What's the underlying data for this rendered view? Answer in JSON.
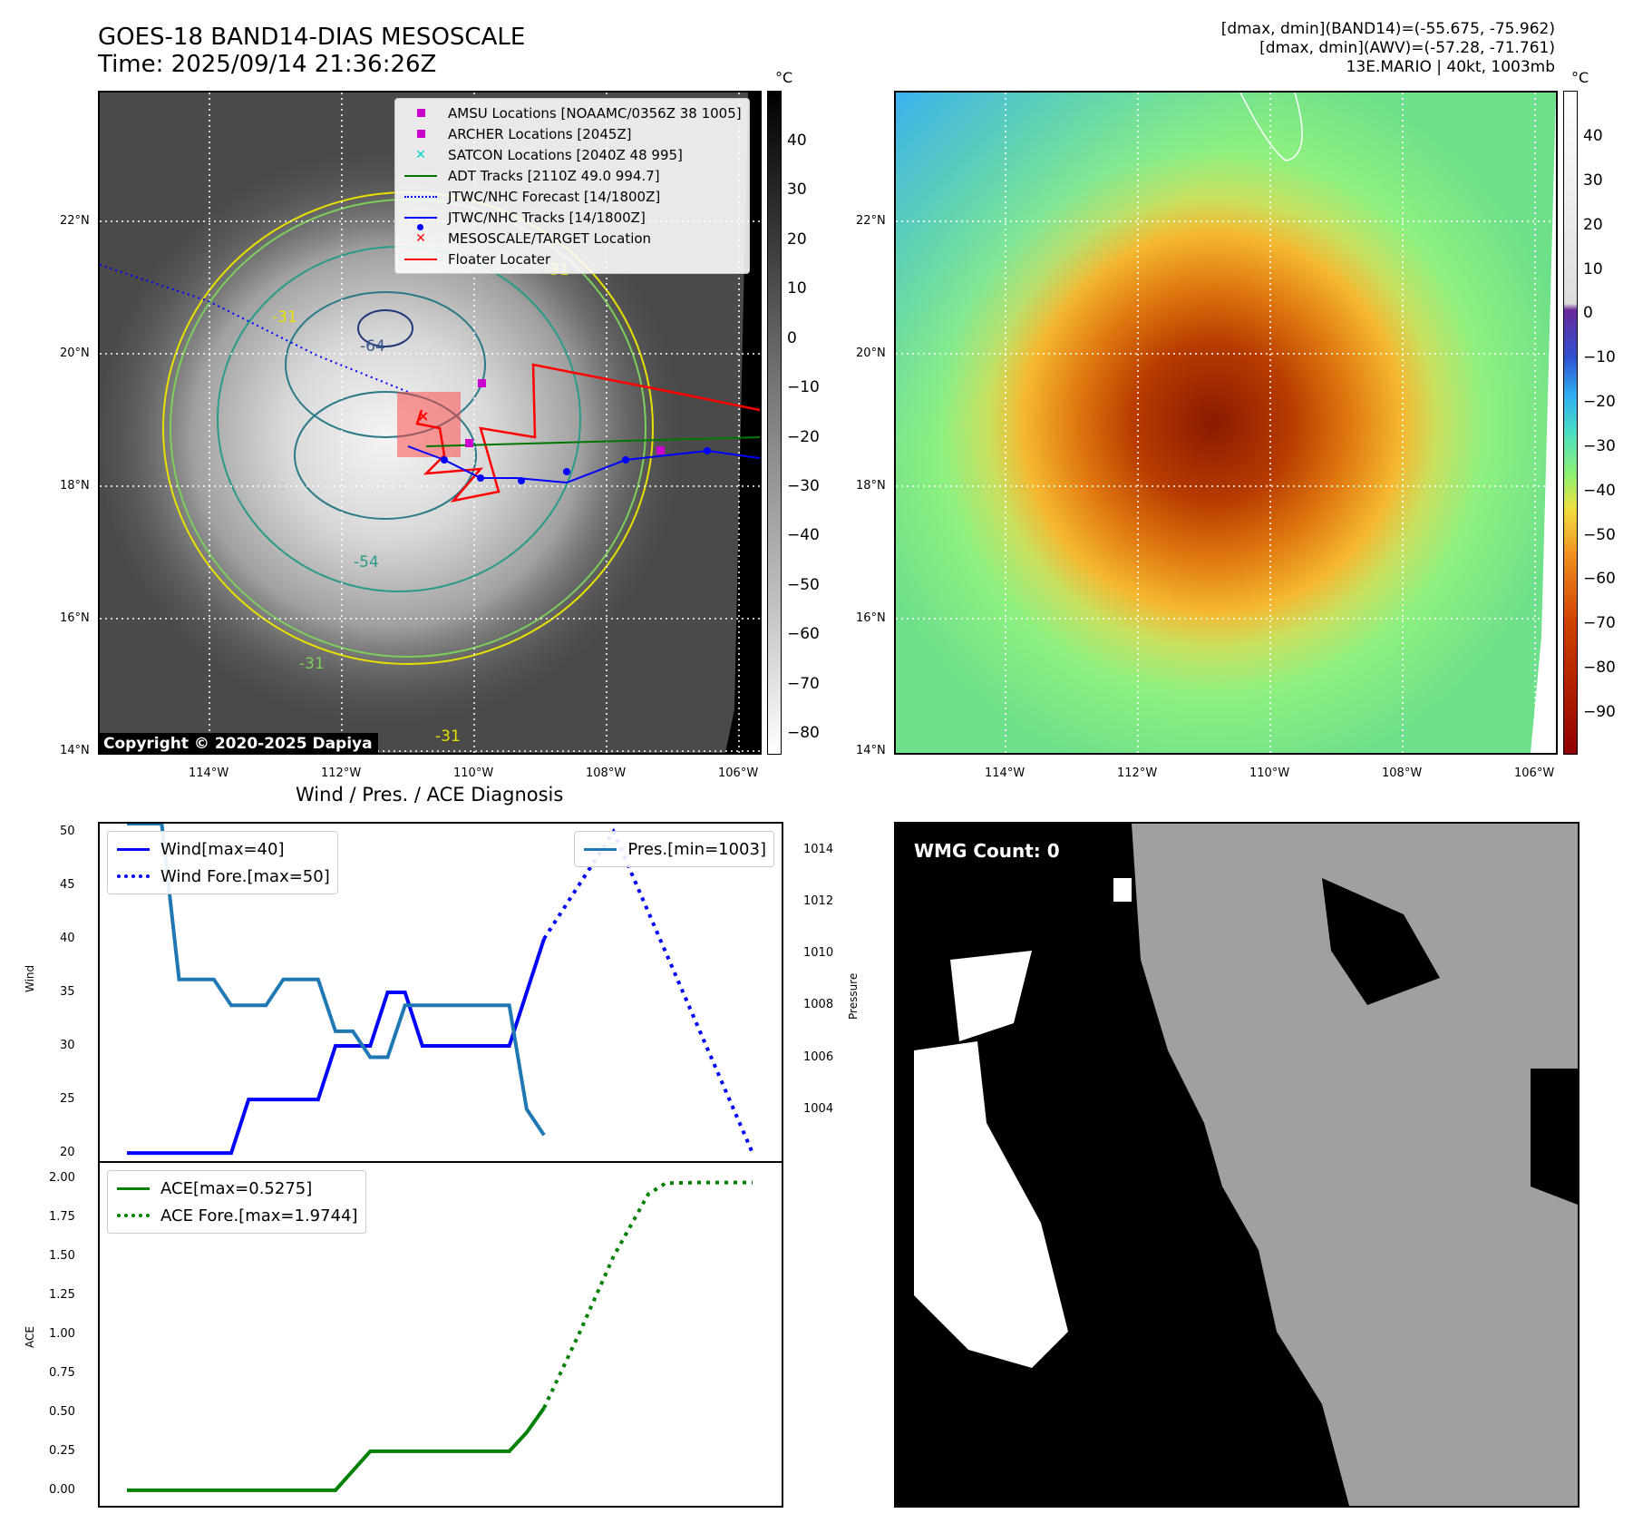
{
  "header": {
    "title_line1": "GOES-18 BAND14-DIAS MESOSCALE",
    "title_line2": "Time: 2025/09/14 21:36:26Z",
    "info_line1": "[dmax, dmin](BAND14)=(-55.675, -75.962)",
    "info_line2": "[dmax, dmin](AWV)=(-57.28, -71.761)",
    "info_line3": "13E.MARIO | 40kt, 1003mb"
  },
  "map": {
    "lat_labels": [
      "22°N",
      "20°N",
      "18°N",
      "16°N",
      "14°N"
    ],
    "lon_labels": [
      "114°W",
      "112°W",
      "110°W",
      "108°W",
      "106°W"
    ],
    "copyright": "Copyright © 2020-2025 Dapiya",
    "contour_labels": [
      "-64",
      "-54",
      "-31",
      "-31",
      "-31",
      "-31"
    ]
  },
  "legend": {
    "items": [
      {
        "label": "AMSU Locations [NOAAMC/0356Z 38 1005]",
        "color": "#cc00cc",
        "icon": "square-marker-icon"
      },
      {
        "label": "ARCHER Locations [2045Z]",
        "color": "#cc00cc",
        "icon": "square-marker-icon"
      },
      {
        "label": "SATCON Locations [2040Z 48 995]",
        "color": "#00cccc",
        "icon": "x-marker-icon"
      },
      {
        "label": "ADT Tracks [2110Z 49.0 994.7]",
        "color": "#007700",
        "icon": "solid-line-icon"
      },
      {
        "label": "JTWC/NHC Forecast [14/1800Z]",
        "color": "#0000ff",
        "icon": "dotted-line-icon"
      },
      {
        "label": "JTWC/NHC Tracks [14/1800Z]",
        "color": "#0000ff",
        "icon": "dot-line-icon"
      },
      {
        "label": "MESOSCALE/TARGET Location",
        "color": "#ff0000",
        "icon": "x-marker-icon"
      },
      {
        "label": "Floater Locater",
        "color": "#ff0000",
        "icon": "solid-line-icon"
      }
    ]
  },
  "colorbar_left": {
    "unit": "°C",
    "ticks": [
      "40",
      "30",
      "20",
      "10",
      "0",
      "−10",
      "−20",
      "−30",
      "−40",
      "−50",
      "−60",
      "−70",
      "−80"
    ]
  },
  "colorbar_right": {
    "unit": "°C",
    "ticks": [
      "40",
      "30",
      "20",
      "10",
      "0",
      "−10",
      "−20",
      "−30",
      "−40",
      "−50",
      "−60",
      "−70",
      "−80",
      "−90"
    ]
  },
  "wmg": {
    "label": "WMG Count: 0"
  },
  "chart_data": {
    "type": "line",
    "title": "Wind / Pres. / ACE Diagnosis",
    "wind": {
      "ylabel": "Wind",
      "ylim": [
        19.25,
        50.75
      ],
      "yticks": [
        "50",
        "45",
        "40",
        "35",
        "30",
        "25",
        "20"
      ],
      "series": [
        {
          "name": "Wind[max=40]",
          "color": "#0000ff",
          "style": "solid",
          "x": [
            0,
            1,
            2,
            3,
            4,
            5,
            6,
            7,
            8,
            9,
            10,
            11,
            12,
            13,
            14,
            15,
            16,
            17,
            18,
            19,
            20,
            21,
            22,
            23,
            24
          ],
          "values": [
            20,
            20,
            20,
            20,
            20,
            20,
            20,
            25,
            25,
            25,
            25,
            25,
            30,
            30,
            30,
            35,
            35,
            30,
            30,
            30,
            30,
            30,
            30,
            35,
            40
          ]
        },
        {
          "name": "Wind Fore.[max=50]",
          "color": "#0000ff",
          "style": "dotted",
          "x": [
            24,
            28,
            32,
            36
          ],
          "values": [
            40,
            50,
            35,
            20
          ]
        }
      ]
    },
    "pressure": {
      "ylabel": "Pressure",
      "ylim": [
        1002.0,
        1015.0
      ],
      "yticks": [
        "1014",
        "1012",
        "1010",
        "1008",
        "1006",
        "1004"
      ],
      "series": [
        {
          "name": "Pres.[min=1003]",
          "color": "#1f77b4",
          "style": "solid",
          "x": [
            0,
            1,
            2,
            3,
            4,
            5,
            6,
            7,
            8,
            9,
            10,
            11,
            12,
            13,
            14,
            15,
            16,
            17,
            18,
            19,
            20,
            21,
            22,
            23,
            24
          ],
          "values": [
            1015,
            1015,
            1015,
            1009,
            1009,
            1009,
            1008,
            1008,
            1008,
            1009,
            1009,
            1009,
            1007,
            1007,
            1006,
            1006,
            1008,
            1008,
            1008,
            1008,
            1008,
            1008,
            1008,
            1004,
            1003
          ]
        }
      ]
    },
    "ace": {
      "ylabel": "ACE",
      "ylim": [
        -0.1,
        2.1
      ],
      "yticks": [
        "2.00",
        "1.75",
        "1.50",
        "1.25",
        "1.00",
        "0.75",
        "0.50",
        "0.25",
        "0.00"
      ],
      "series": [
        {
          "name": "ACE[max=0.5275]",
          "color": "#008000",
          "style": "solid",
          "x": [
            0,
            2,
            4,
            6,
            8,
            10,
            12,
            14,
            16,
            18,
            20,
            22,
            23,
            24
          ],
          "values": [
            0,
            0,
            0,
            0,
            0,
            0,
            0,
            0.25,
            0.25,
            0.25,
            0.25,
            0.25,
            0.37,
            0.5275
          ]
        },
        {
          "name": "ACE Fore.[max=1.9744]",
          "color": "#008000",
          "style": "dotted",
          "x": [
            24,
            26,
            28,
            30,
            31,
            33,
            36
          ],
          "values": [
            0.5275,
            1.0,
            1.5,
            1.9,
            1.97,
            1.9744,
            1.9744
          ]
        }
      ]
    }
  }
}
